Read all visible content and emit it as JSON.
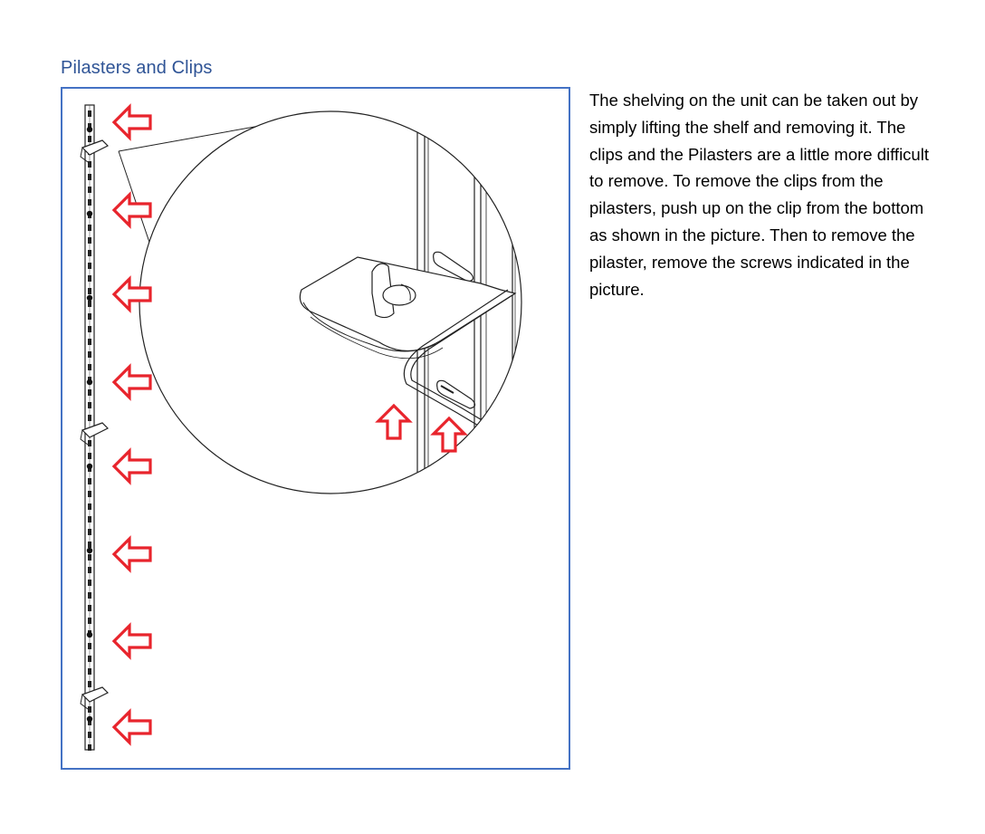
{
  "document": {
    "heading": "Pilasters and Clips",
    "body_text": "The shelving on the unit can be taken out by simply lifting the shelf and removing it.  The clips and the Pilasters are a little more difficult to remove.  To remove the clips from the pilasters, push up on the clip from the bottom as shown in the picture.  Then to remove the pilaster, remove the screws indicated in the picture."
  },
  "figure": {
    "frame_color": "#4472c4",
    "arrow_color": "#e8242c",
    "left_arrow_count": 8,
    "up_arrow_count": 2
  }
}
